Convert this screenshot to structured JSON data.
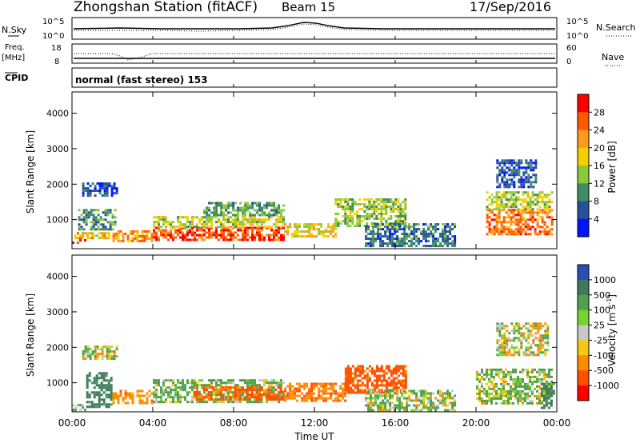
{
  "header": {
    "title": "Zhongshan Station (fitACF)",
    "beam": "Beam 15",
    "date": "17/Sep/2016"
  },
  "top_panels": {
    "nsky_label": "N.Sky",
    "nsearch_label": "N.Search",
    "freq_label_1": "Freq.",
    "freq_label_2": "[MHz]",
    "nave_label": "Nave",
    "cpid_label": "CPID",
    "cpid_text": "normal (fast stereo) 153",
    "noise_ticks": [
      "10^5",
      "10^0"
    ],
    "freq_ticks": [
      "18",
      "8"
    ],
    "nave_ticks": [
      "60",
      "0"
    ]
  },
  "colorbars": {
    "power": {
      "label": "Power [dB]",
      "ticks": [
        "28",
        "24",
        "20",
        "16",
        "12",
        "8",
        "4"
      ],
      "colors": [
        "#ff0000",
        "#ff5a00",
        "#ff9a1e",
        "#f5d000",
        "#8cc83c",
        "#3c8c64",
        "#28509a",
        "#0014ff"
      ]
    },
    "velocity": {
      "label": "Velocity [m s",
      "label_sup": "-1",
      "label_end": "]",
      "ticks": [
        "1000",
        "500",
        "100",
        "25",
        "-25",
        "-100",
        "-500",
        "-1000"
      ],
      "colors": [
        "#2850b4",
        "#3c7a5a",
        "#50a050",
        "#78d232",
        "#c8c8c8",
        "#f5c814",
        "#ff8c00",
        "#ff5000",
        "#ff0000"
      ]
    }
  },
  "chart_data": [
    {
      "type": "heatmap",
      "name": "power",
      "ylabel": "Slant Range [km]",
      "yticks": [
        "1000",
        "2000",
        "3000",
        "4000"
      ],
      "ylim": [
        180,
        4600
      ],
      "xlim": [
        "00:00",
        "24:00"
      ],
      "xticks": [
        "00:00",
        "04:00",
        "08:00",
        "12:00",
        "16:00",
        "20:00",
        "00:00"
      ],
      "bands": [
        {
          "x": [
            0,
            0.7
          ],
          "y": [
            350,
            450
          ],
          "value": 26
        },
        {
          "x": [
            0,
            1.8
          ],
          "y": [
            450,
            650
          ],
          "value": 20
        },
        {
          "x": [
            0.3,
            2.2
          ],
          "y": [
            700,
            1300
          ],
          "value": 10
        },
        {
          "x": [
            0.5,
            2.2
          ],
          "y": [
            1700,
            2050
          ],
          "value": 6
        },
        {
          "x": [
            2.0,
            4.0
          ],
          "y": [
            400,
            700
          ],
          "value": 22
        },
        {
          "x": [
            4.0,
            10.5
          ],
          "y": [
            450,
            800
          ],
          "value": 27
        },
        {
          "x": [
            4.0,
            10.5
          ],
          "y": [
            800,
            1100
          ],
          "value": 16
        },
        {
          "x": [
            6.5,
            10.5
          ],
          "y": [
            1100,
            1500
          ],
          "value": 11
        },
        {
          "x": [
            10.5,
            13.0
          ],
          "y": [
            500,
            900
          ],
          "value": 18
        },
        {
          "x": [
            13.0,
            16.5
          ],
          "y": [
            800,
            1600
          ],
          "value": 14
        },
        {
          "x": [
            14.5,
            19.0
          ],
          "y": [
            250,
            900
          ],
          "value": 8
        },
        {
          "x": [
            20.5,
            23.8
          ],
          "y": [
            600,
            1300
          ],
          "value": 24
        },
        {
          "x": [
            20.5,
            23.8
          ],
          "y": [
            1300,
            1800
          ],
          "value": 15
        },
        {
          "x": [
            21.0,
            23.0
          ],
          "y": [
            1900,
            2700
          ],
          "value": 6
        }
      ]
    },
    {
      "type": "heatmap",
      "name": "velocity",
      "ylabel": "Slant Range [km]",
      "yticks": [
        "1000",
        "2000",
        "3000",
        "4000"
      ],
      "ylim": [
        180,
        4600
      ],
      "xlim": [
        "00:00",
        "24:00"
      ],
      "xticks": [
        "00:00",
        "04:00",
        "08:00",
        "12:00",
        "16:00",
        "20:00",
        "00:00"
      ],
      "xlabel": "Time UT",
      "bands": [
        {
          "x": [
            0,
            0.7
          ],
          "y": [
            200,
            400
          ],
          "value": 200
        },
        {
          "x": [
            0.7,
            2.0
          ],
          "y": [
            350,
            1300
          ],
          "value": 700
        },
        {
          "x": [
            0.5,
            2.2
          ],
          "y": [
            1700,
            2050
          ],
          "value": 0
        },
        {
          "x": [
            2.0,
            4.0
          ],
          "y": [
            400,
            800
          ],
          "value": -300
        },
        {
          "x": [
            4.0,
            10.5
          ],
          "y": [
            450,
            1100
          ],
          "value": 150
        },
        {
          "x": [
            6.0,
            10.5
          ],
          "y": [
            500,
            900
          ],
          "value": -600
        },
        {
          "x": [
            10.5,
            13.5
          ],
          "y": [
            500,
            1000
          ],
          "value": -400
        },
        {
          "x": [
            13.5,
            16.5
          ],
          "y": [
            700,
            1500
          ],
          "value": -700
        },
        {
          "x": [
            14.5,
            19.0
          ],
          "y": [
            250,
            800
          ],
          "value": 100
        },
        {
          "x": [
            20.0,
            23.8
          ],
          "y": [
            400,
            1400
          ],
          "value": 120
        },
        {
          "x": [
            21.0,
            23.5
          ],
          "y": [
            1800,
            2700
          ],
          "value": 0
        },
        {
          "x": [
            23.2,
            23.8
          ],
          "y": [
            300,
            1000
          ],
          "value": 700
        }
      ]
    }
  ]
}
